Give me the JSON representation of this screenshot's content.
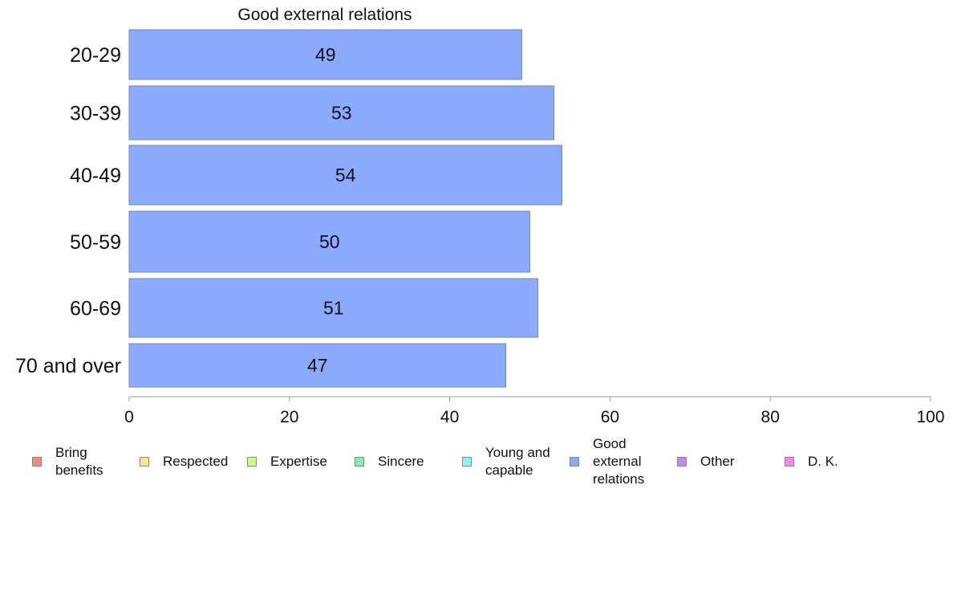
{
  "chart_data": {
    "type": "bar",
    "orientation": "horizontal",
    "title": "Good external relations",
    "categories": [
      "20-29",
      "30-39",
      "40-49",
      "50-59",
      "60-69",
      "70 and over"
    ],
    "series": [
      {
        "name": "Good external relations",
        "values": [
          49,
          53,
          54,
          50,
          51,
          47
        ],
        "color": "#8aaafd"
      }
    ],
    "xlim": [
      0,
      100
    ],
    "xticks": [
      0,
      20,
      40,
      60,
      80,
      100
    ],
    "grid": false,
    "legend_position": "bottom",
    "legend": [
      {
        "label": "Bring\nbenefits",
        "color": "#f28b82"
      },
      {
        "label": "Respected",
        "color": "#fde68a"
      },
      {
        "label": "Expertise",
        "color": "#ccff8a"
      },
      {
        "label": "Sincere",
        "color": "#86f0a6"
      },
      {
        "label": "Young and\ncapable",
        "color": "#8af5f5"
      },
      {
        "label": "Good\nexternal\nrelations",
        "color": "#8aaafd"
      },
      {
        "label": "Other",
        "color": "#c08af5"
      },
      {
        "label": "D. K.",
        "color": "#f58ae6"
      }
    ]
  }
}
